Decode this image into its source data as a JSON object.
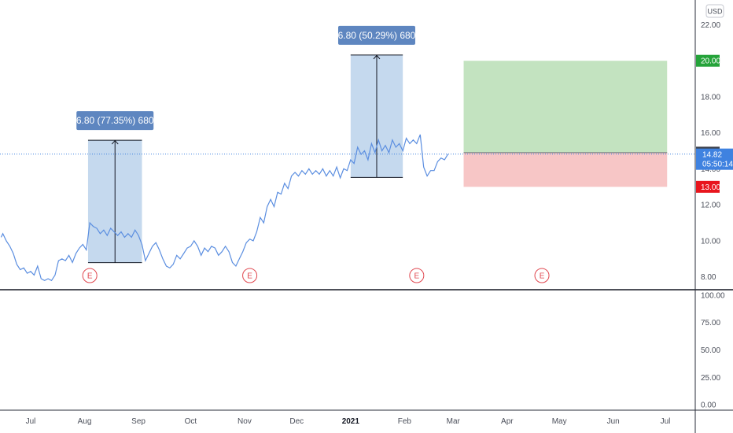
{
  "chart_data": {
    "type": "line",
    "currency": "USD",
    "price_axis": {
      "min": 7.2,
      "max": 23.2,
      "ticks": [
        8,
        10,
        12,
        14,
        16,
        18,
        20,
        22
      ],
      "tick_labels": [
        "8.00",
        "10.00",
        "12.00",
        "14.00",
        "16.00",
        "18.00",
        "20.00",
        "22.00"
      ]
    },
    "indicator_axis": {
      "min": -5,
      "max": 105,
      "ticks": [
        0,
        25,
        50,
        75,
        100
      ],
      "tick_labels": [
        "0.00",
        "25.00",
        "50.00",
        "75.00",
        "100.00"
      ]
    },
    "x_axis": {
      "labels": [
        {
          "text": "Jul",
          "day": 0,
          "bold": false
        },
        {
          "text": "Aug",
          "day": 31,
          "bold": false
        },
        {
          "text": "Sep",
          "day": 62,
          "bold": false
        },
        {
          "text": "Oct",
          "day": 92,
          "bold": false
        },
        {
          "text": "Nov",
          "day": 123,
          "bold": false
        },
        {
          "text": "Dec",
          "day": 153,
          "bold": false
        },
        {
          "text": "2021",
          "day": 184,
          "bold": true
        },
        {
          "text": "Feb",
          "day": 215,
          "bold": false
        },
        {
          "text": "Mar",
          "day": 243,
          "bold": false
        },
        {
          "text": "Apr",
          "day": 274,
          "bold": false
        },
        {
          "text": "May",
          "day": 304,
          "bold": false
        },
        {
          "text": "Jun",
          "day": 335,
          "bold": false
        },
        {
          "text": "Jul",
          "day": 365,
          "bold": false
        }
      ]
    },
    "series": [
      {
        "color": "#5b8ee0",
        "points": [
          [
            -17,
            10.2
          ],
          [
            -16,
            10.4
          ],
          [
            -14,
            10.0
          ],
          [
            -12,
            9.7
          ],
          [
            -10,
            9.3
          ],
          [
            -8,
            8.7
          ],
          [
            -6,
            8.4
          ],
          [
            -4,
            8.5
          ],
          [
            -2,
            8.2
          ],
          [
            0,
            8.3
          ],
          [
            2,
            8.1
          ],
          [
            4,
            8.6
          ],
          [
            6,
            7.9
          ],
          [
            8,
            7.8
          ],
          [
            10,
            7.9
          ],
          [
            12,
            7.8
          ],
          [
            14,
            8.1
          ],
          [
            16,
            8.9
          ],
          [
            18,
            9.0
          ],
          [
            20,
            8.9
          ],
          [
            22,
            9.2
          ],
          [
            24,
            8.8
          ],
          [
            26,
            9.3
          ],
          [
            28,
            9.6
          ],
          [
            30,
            9.8
          ],
          [
            32,
            9.5
          ],
          [
            34,
            11.0
          ],
          [
            36,
            10.8
          ],
          [
            38,
            10.7
          ],
          [
            40,
            10.4
          ],
          [
            42,
            10.6
          ],
          [
            44,
            10.3
          ],
          [
            46,
            10.7
          ],
          [
            48,
            10.5
          ],
          [
            50,
            10.3
          ],
          [
            52,
            10.5
          ],
          [
            54,
            10.2
          ],
          [
            56,
            10.4
          ],
          [
            58,
            10.2
          ],
          [
            60,
            10.6
          ],
          [
            62,
            10.3
          ],
          [
            64,
            9.8
          ],
          [
            66,
            8.9
          ],
          [
            68,
            9.3
          ],
          [
            70,
            9.7
          ],
          [
            72,
            9.9
          ],
          [
            74,
            9.5
          ],
          [
            76,
            9.0
          ],
          [
            78,
            8.6
          ],
          [
            80,
            8.5
          ],
          [
            82,
            8.7
          ],
          [
            84,
            9.2
          ],
          [
            86,
            9.0
          ],
          [
            88,
            9.3
          ],
          [
            90,
            9.6
          ],
          [
            92,
            9.7
          ],
          [
            94,
            10.0
          ],
          [
            96,
            9.7
          ],
          [
            98,
            9.2
          ],
          [
            100,
            9.6
          ],
          [
            102,
            9.4
          ],
          [
            104,
            9.7
          ],
          [
            106,
            9.6
          ],
          [
            108,
            9.2
          ],
          [
            110,
            9.4
          ],
          [
            112,
            9.7
          ],
          [
            114,
            9.4
          ],
          [
            116,
            8.8
          ],
          [
            118,
            8.6
          ],
          [
            120,
            9.0
          ],
          [
            122,
            9.4
          ],
          [
            124,
            9.9
          ],
          [
            126,
            10.1
          ],
          [
            128,
            10.0
          ],
          [
            130,
            10.5
          ],
          [
            132,
            11.3
          ],
          [
            134,
            11.0
          ],
          [
            136,
            11.9
          ],
          [
            138,
            12.3
          ],
          [
            140,
            11.9
          ],
          [
            142,
            12.7
          ],
          [
            144,
            12.6
          ],
          [
            146,
            13.2
          ],
          [
            148,
            12.9
          ],
          [
            150,
            13.6
          ],
          [
            152,
            13.8
          ],
          [
            154,
            13.6
          ],
          [
            156,
            13.9
          ],
          [
            158,
            13.7
          ],
          [
            160,
            14.0
          ],
          [
            162,
            13.7
          ],
          [
            164,
            13.9
          ],
          [
            166,
            13.7
          ],
          [
            168,
            14.0
          ],
          [
            170,
            13.6
          ],
          [
            172,
            13.9
          ],
          [
            174,
            13.6
          ],
          [
            176,
            14.1
          ],
          [
            178,
            13.5
          ],
          [
            180,
            14.0
          ],
          [
            182,
            13.9
          ],
          [
            184,
            14.5
          ],
          [
            186,
            14.3
          ],
          [
            188,
            15.2
          ],
          [
            190,
            14.8
          ],
          [
            192,
            15.0
          ],
          [
            194,
            14.5
          ],
          [
            196,
            15.4
          ],
          [
            198,
            14.9
          ],
          [
            200,
            15.6
          ],
          [
            202,
            15.0
          ],
          [
            204,
            15.3
          ],
          [
            206,
            14.9
          ],
          [
            208,
            15.6
          ],
          [
            210,
            15.2
          ],
          [
            212,
            15.4
          ],
          [
            214,
            15.0
          ],
          [
            216,
            15.7
          ],
          [
            218,
            15.4
          ],
          [
            220,
            15.6
          ],
          [
            222,
            15.4
          ],
          [
            224,
            15.9
          ],
          [
            226,
            14.1
          ],
          [
            228,
            13.6
          ],
          [
            230,
            13.9
          ],
          [
            232,
            13.9
          ],
          [
            234,
            14.4
          ],
          [
            236,
            14.6
          ],
          [
            238,
            14.5
          ],
          [
            240,
            14.82
          ]
        ]
      }
    ],
    "last_price": {
      "value": 14.82,
      "label": "14.82",
      "countdown": "05:50:14"
    },
    "measurements": [
      {
        "text": "6.80 (77.35%) 680",
        "start_day": 33,
        "end_day": 64,
        "low": 8.79,
        "high": 15.59
      },
      {
        "text": "6.80 (50.29%) 680",
        "start_day": 184,
        "end_day": 214,
        "low": 13.52,
        "high": 20.32
      }
    ],
    "position": {
      "start_day": 249,
      "end_day": 366,
      "entry": 14.9,
      "target": 20.0,
      "stop": 13.0,
      "entry_label": "14.90",
      "target_label": "20.00",
      "stop_label": "13.00"
    },
    "earnings": [
      {
        "label": "E",
        "day": 34
      },
      {
        "label": "E",
        "day": 126
      },
      {
        "label": "E",
        "day": 222
      },
      {
        "label": "E",
        "day": 294
      }
    ],
    "colors": {
      "line": "#5b8ee0",
      "measure_fill": "#c5d9ee",
      "measure_label": "#5e86c0",
      "profit_fill": "#c3e3c0",
      "loss_fill": "#f7c6c6",
      "target_tag": "#25a33a",
      "stop_tag": "#e8151d",
      "entry_tag": "#3a3f4b",
      "last_tag": "#3f82e0"
    }
  }
}
